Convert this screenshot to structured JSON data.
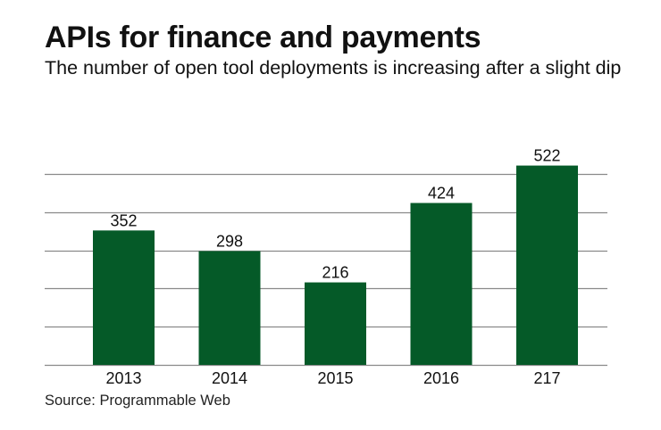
{
  "chart_data": {
    "type": "bar",
    "title": "APIs for finance and payments",
    "subtitle": "The number of open tool deployments is increasing after a slight dip",
    "categories": [
      "2013",
      "2014",
      "2015",
      "2016",
      "217"
    ],
    "values": [
      352,
      298,
      216,
      424,
      522
    ],
    "data_labels": [
      "352",
      "298",
      "216",
      "424",
      "522"
    ],
    "xlabel": "",
    "ylabel": "",
    "ylim": [
      0,
      500
    ],
    "gridlines": [
      100,
      200,
      300,
      400,
      500
    ],
    "grid": true,
    "y_tick_labels_visible": false,
    "legend": "none",
    "source": "Source: Programmable Web",
    "bar_color": "#055a28"
  }
}
